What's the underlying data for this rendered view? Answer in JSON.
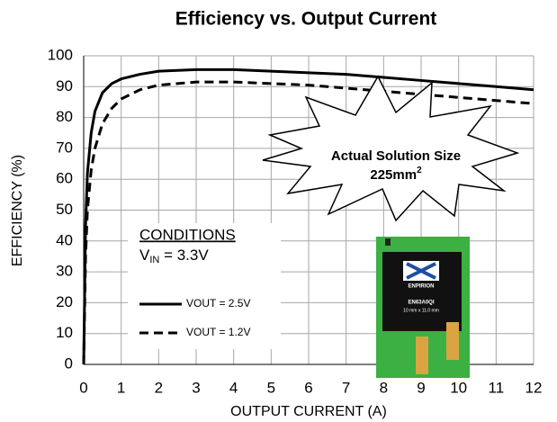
{
  "chart_data": {
    "type": "line",
    "title": "Efficiency vs. Output Current",
    "xlabel": "OUTPUT CURRENT (A)",
    "ylabel": "EFFICIENCY (%)",
    "x": [
      0,
      0.05,
      0.1,
      0.2,
      0.3,
      0.5,
      0.75,
      1,
      1.5,
      2,
      3,
      4,
      5,
      6,
      7,
      8,
      9,
      10,
      11,
      12
    ],
    "series": [
      {
        "name": "VOUT = 2.5V",
        "color": "#000000",
        "dash": "solid",
        "values": [
          0,
          45,
          62,
          75,
          82,
          88,
          91,
          92.5,
          94,
          95,
          95.5,
          95.5,
          95,
          94.5,
          94,
          93,
          92,
          91,
          90,
          89
        ]
      },
      {
        "name": "VOUT = 1.2V",
        "color": "#000000",
        "dash": "dashed",
        "values": [
          0,
          35,
          50,
          63,
          70,
          78,
          83,
          86,
          89,
          90.5,
          91.5,
          91.5,
          91,
          90.5,
          89.5,
          88.5,
          87.5,
          86.5,
          85.5,
          84.5
        ]
      }
    ],
    "xlim": [
      0,
      12
    ],
    "xticks": [
      0,
      1,
      2,
      3,
      4,
      5,
      6,
      7,
      8,
      9,
      10,
      11,
      12
    ],
    "ylim": [
      0,
      100
    ],
    "yticks": [
      0,
      10,
      20,
      30,
      40,
      50,
      60,
      70,
      80,
      90,
      100
    ],
    "grid": true,
    "annotations": {
      "conditions": "CONDITIONS",
      "vin": {
        "main": "V",
        "sub": "IN",
        "rest": " = 3.3V"
      },
      "size_line1": "Actual Solution Size",
      "size_line2": {
        "main": "225mm",
        "sup": "2"
      },
      "chip_brand": "ENPIRION",
      "chip_part": "EN63A0QI",
      "chip_dims": "10 mm x 11.0 mm"
    }
  }
}
